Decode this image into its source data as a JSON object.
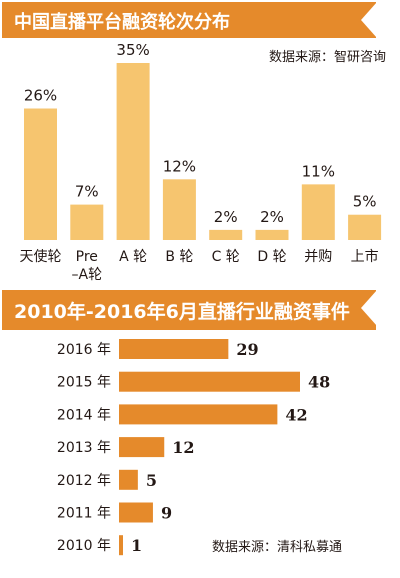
{
  "chart_data": [
    {
      "type": "bar",
      "title": "中国直播平台融资轮次分布",
      "source": "数据来源：智研咨询",
      "categories": [
        "天使轮",
        "Pre\n–A轮",
        "A 轮",
        "B 轮",
        "C 轮",
        "D 轮",
        "并购",
        "上市"
      ],
      "values": [
        26,
        7,
        35,
        12,
        2,
        2,
        11,
        5
      ],
      "value_labels": [
        "26%",
        "7%",
        "35%",
        "12%",
        "2%",
        "2%",
        "11%",
        "5%"
      ],
      "unit": "%",
      "bar_color": "#f6c56f"
    },
    {
      "type": "bar",
      "orientation": "horizontal",
      "title": "2010年-2016年6月直播行业融资事件",
      "source": "数据来源：清科私募通",
      "categories": [
        "2016 年",
        "2015 年",
        "2014 年",
        "2013 年",
        "2012 年",
        "2011 年",
        "2010 年"
      ],
      "values": [
        29,
        48,
        42,
        12,
        5,
        9,
        1
      ],
      "bar_color": "#e58a2b"
    }
  ],
  "colors": {
    "banner": "#e58a2b",
    "text": "#231815"
  }
}
